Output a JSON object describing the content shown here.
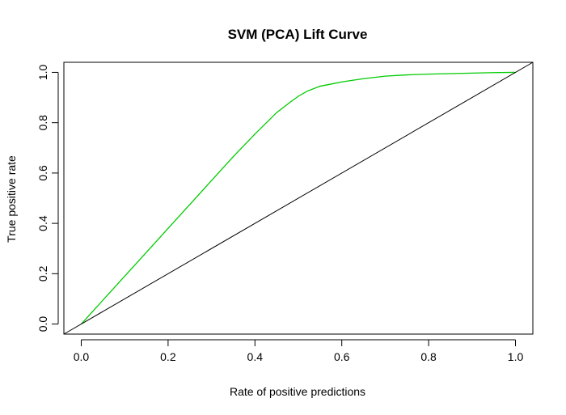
{
  "chart_data": {
    "type": "line",
    "title": "SVM (PCA) Lift Curve",
    "xlabel": "Rate of positive predictions",
    "ylabel": "True positive rate",
    "xlim": [
      -0.04,
      1.04
    ],
    "ylim": [
      -0.04,
      1.04
    ],
    "xticks": [
      0.0,
      0.2,
      0.4,
      0.6,
      0.8,
      1.0
    ],
    "yticks": [
      0.0,
      0.2,
      0.4,
      0.6,
      0.8,
      1.0
    ],
    "xtick_labels": [
      "0.0",
      "0.2",
      "0.4",
      "0.6",
      "0.8",
      "1.0"
    ],
    "ytick_labels": [
      "0.0",
      "0.2",
      "0.4",
      "0.6",
      "0.8",
      "1.0"
    ],
    "grid": false,
    "series": [
      {
        "color": "#00cc00",
        "x": [
          0.0,
          0.05,
          0.1,
          0.15,
          0.2,
          0.25,
          0.3,
          0.35,
          0.4,
          0.45,
          0.48,
          0.5,
          0.52,
          0.55,
          0.58,
          0.6,
          0.65,
          0.7,
          0.75,
          0.8,
          0.85,
          0.9,
          0.95,
          1.0
        ],
        "y": [
          0.0,
          0.095,
          0.19,
          0.285,
          0.38,
          0.475,
          0.57,
          0.665,
          0.755,
          0.84,
          0.88,
          0.905,
          0.925,
          0.945,
          0.955,
          0.962,
          0.975,
          0.985,
          0.99,
          0.993,
          0.995,
          0.997,
          0.999,
          1.0
        ]
      },
      {
        "color": "#000000",
        "x": [
          -0.04,
          1.04
        ],
        "y": [
          -0.04,
          1.04
        ]
      }
    ]
  }
}
